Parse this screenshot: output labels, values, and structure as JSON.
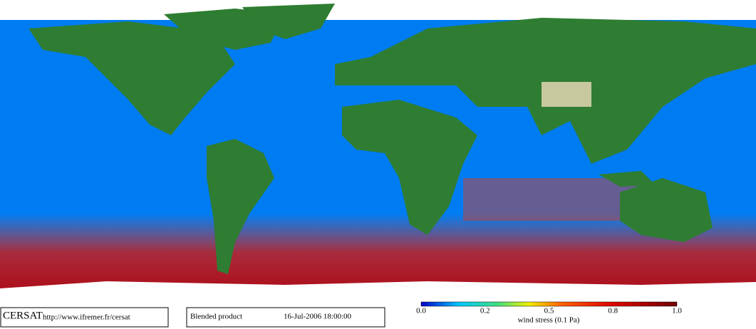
{
  "logo": "CERSAT",
  "url": "http://www.ifremer.fr/cersat",
  "product": "Blended product",
  "date": "16-Jul-2006 18:00:00",
  "colorbar": {
    "ticks": [
      "0.0",
      "0.2",
      "0.5",
      "0.8",
      "1.0"
    ],
    "label": "wind stress (0.1 Pa)"
  }
}
